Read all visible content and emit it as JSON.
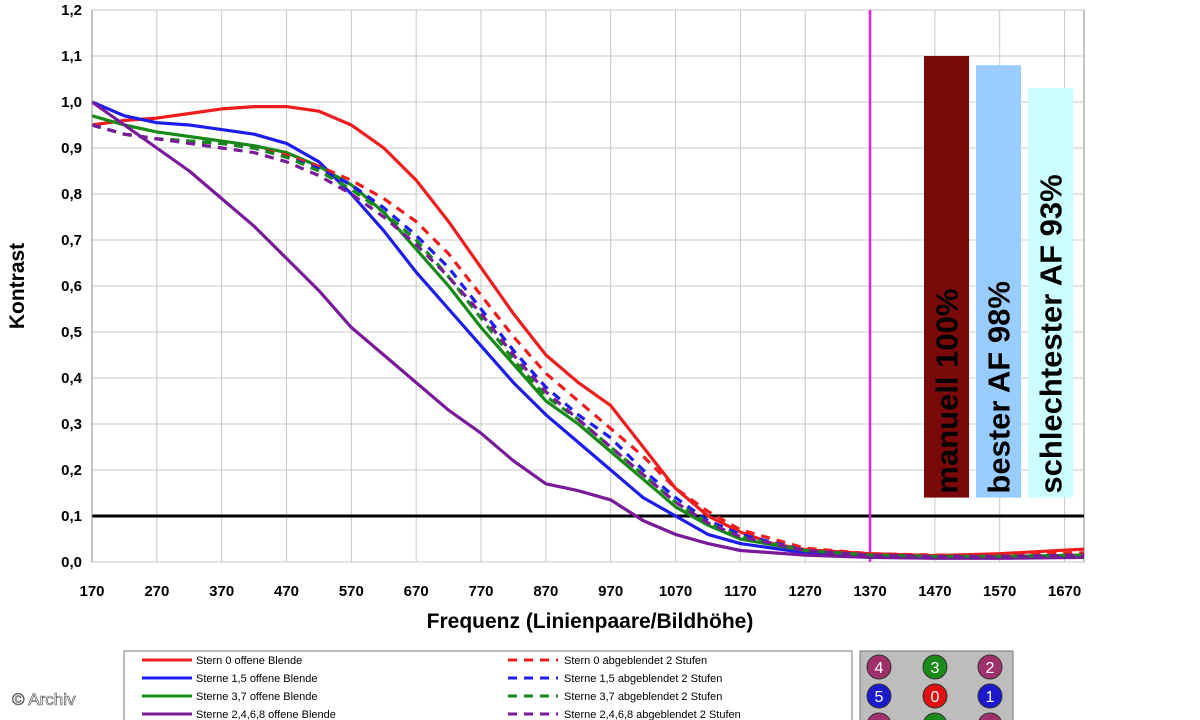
{
  "chart_data": {
    "type": "line",
    "title": "",
    "xlabel": "Frequenz (Linienpaare/Bildhöhe)",
    "ylabel": "Kontrast",
    "xlim": [
      170,
      1700
    ],
    "ylim": [
      0.0,
      1.2
    ],
    "xticks": [
      "170",
      "270",
      "370",
      "470",
      "570",
      "670",
      "770",
      "870",
      "970",
      "1070",
      "1170",
      "1270",
      "1370",
      "1470",
      "1570",
      "1670"
    ],
    "yticks": [
      "0,0",
      "0,1",
      "0,2",
      "0,3",
      "0,4",
      "0,5",
      "0,6",
      "0,7",
      "0,8",
      "0,9",
      "1,0",
      "1,1",
      "1,2"
    ],
    "grid": true,
    "reference_line": {
      "y": 0.1,
      "color": "#000000"
    },
    "marker_line": {
      "x": 1370,
      "color": "#e020e0"
    },
    "series": [
      {
        "name": "Stern 0 offene Blende",
        "color": "#ee1c1c",
        "dash": false,
        "points": [
          [
            170,
            0.95
          ],
          [
            220,
            0.96
          ],
          [
            270,
            0.965
          ],
          [
            320,
            0.975
          ],
          [
            370,
            0.985
          ],
          [
            420,
            0.99
          ],
          [
            470,
            0.99
          ],
          [
            520,
            0.98
          ],
          [
            570,
            0.95
          ],
          [
            620,
            0.9
          ],
          [
            670,
            0.83
          ],
          [
            720,
            0.74
          ],
          [
            770,
            0.64
          ],
          [
            820,
            0.54
          ],
          [
            870,
            0.45
          ],
          [
            920,
            0.39
          ],
          [
            970,
            0.34
          ],
          [
            1020,
            0.25
          ],
          [
            1070,
            0.16
          ],
          [
            1120,
            0.1
          ],
          [
            1170,
            0.065
          ],
          [
            1220,
            0.04
          ],
          [
            1270,
            0.027
          ],
          [
            1370,
            0.018
          ],
          [
            1470,
            0.014
          ],
          [
            1570,
            0.018
          ],
          [
            1700,
            0.028
          ]
        ]
      },
      {
        "name": "Sterne 1,5 offene Blende",
        "color": "#1c1cee",
        "dash": false,
        "points": [
          [
            170,
            1.0
          ],
          [
            220,
            0.97
          ],
          [
            270,
            0.955
          ],
          [
            320,
            0.95
          ],
          [
            370,
            0.94
          ],
          [
            420,
            0.93
          ],
          [
            470,
            0.91
          ],
          [
            520,
            0.87
          ],
          [
            570,
            0.8
          ],
          [
            620,
            0.72
          ],
          [
            670,
            0.63
          ],
          [
            720,
            0.55
          ],
          [
            770,
            0.47
          ],
          [
            820,
            0.39
          ],
          [
            870,
            0.32
          ],
          [
            920,
            0.26
          ],
          [
            970,
            0.2
          ],
          [
            1020,
            0.14
          ],
          [
            1070,
            0.1
          ],
          [
            1120,
            0.06
          ],
          [
            1170,
            0.04
          ],
          [
            1270,
            0.02
          ],
          [
            1370,
            0.013
          ],
          [
            1470,
            0.01
          ],
          [
            1570,
            0.01
          ],
          [
            1700,
            0.012
          ]
        ]
      },
      {
        "name": "Sterne 3,7 offene Blende",
        "color": "#168a16",
        "dash": false,
        "points": [
          [
            170,
            0.97
          ],
          [
            220,
            0.95
          ],
          [
            270,
            0.935
          ],
          [
            320,
            0.925
          ],
          [
            370,
            0.915
          ],
          [
            420,
            0.905
          ],
          [
            470,
            0.89
          ],
          [
            520,
            0.86
          ],
          [
            570,
            0.82
          ],
          [
            620,
            0.76
          ],
          [
            670,
            0.68
          ],
          [
            720,
            0.6
          ],
          [
            770,
            0.51
          ],
          [
            820,
            0.43
          ],
          [
            870,
            0.35
          ],
          [
            920,
            0.3
          ],
          [
            970,
            0.24
          ],
          [
            1020,
            0.18
          ],
          [
            1070,
            0.12
          ],
          [
            1120,
            0.08
          ],
          [
            1170,
            0.05
          ],
          [
            1270,
            0.025
          ],
          [
            1370,
            0.015
          ],
          [
            1470,
            0.012
          ],
          [
            1570,
            0.012
          ],
          [
            1700,
            0.015
          ]
        ]
      },
      {
        "name": "Sterne 2,4,6,8 offene Blende",
        "color": "#7a1a9a",
        "dash": false,
        "points": [
          [
            170,
            1.0
          ],
          [
            220,
            0.95
          ],
          [
            270,
            0.9
          ],
          [
            320,
            0.85
          ],
          [
            370,
            0.79
          ],
          [
            420,
            0.73
          ],
          [
            470,
            0.66
          ],
          [
            520,
            0.59
          ],
          [
            570,
            0.51
          ],
          [
            620,
            0.45
          ],
          [
            670,
            0.39
          ],
          [
            720,
            0.33
          ],
          [
            770,
            0.28
          ],
          [
            820,
            0.22
          ],
          [
            870,
            0.17
          ],
          [
            920,
            0.155
          ],
          [
            970,
            0.135
          ],
          [
            1020,
            0.09
          ],
          [
            1070,
            0.06
          ],
          [
            1120,
            0.04
          ],
          [
            1170,
            0.025
          ],
          [
            1270,
            0.015
          ],
          [
            1370,
            0.01
          ],
          [
            1470,
            0.008
          ],
          [
            1570,
            0.008
          ],
          [
            1700,
            0.01
          ]
        ]
      },
      {
        "name": "Stern 0 abgeblendet 2 Stufen",
        "color": "#ee1c1c",
        "dash": true,
        "points": [
          [
            170,
            0.95
          ],
          [
            220,
            0.93
          ],
          [
            270,
            0.92
          ],
          [
            320,
            0.915
          ],
          [
            370,
            0.91
          ],
          [
            420,
            0.9
          ],
          [
            470,
            0.885
          ],
          [
            520,
            0.86
          ],
          [
            570,
            0.83
          ],
          [
            620,
            0.79
          ],
          [
            670,
            0.74
          ],
          [
            720,
            0.67
          ],
          [
            770,
            0.58
          ],
          [
            820,
            0.49
          ],
          [
            870,
            0.41
          ],
          [
            920,
            0.35
          ],
          [
            970,
            0.29
          ],
          [
            1020,
            0.23
          ],
          [
            1070,
            0.16
          ],
          [
            1120,
            0.11
          ],
          [
            1170,
            0.07
          ],
          [
            1270,
            0.03
          ],
          [
            1370,
            0.018
          ],
          [
            1470,
            0.015
          ],
          [
            1570,
            0.015
          ],
          [
            1700,
            0.02
          ]
        ]
      },
      {
        "name": "Sterne 1,5 abgeblendet 2 Stufen",
        "color": "#1c1cee",
        "dash": true,
        "points": [
          [
            170,
            0.95
          ],
          [
            220,
            0.93
          ],
          [
            270,
            0.92
          ],
          [
            320,
            0.915
          ],
          [
            370,
            0.91
          ],
          [
            420,
            0.9
          ],
          [
            470,
            0.88
          ],
          [
            520,
            0.855
          ],
          [
            570,
            0.82
          ],
          [
            620,
            0.77
          ],
          [
            670,
            0.71
          ],
          [
            720,
            0.64
          ],
          [
            770,
            0.55
          ],
          [
            820,
            0.46
          ],
          [
            870,
            0.38
          ],
          [
            920,
            0.32
          ],
          [
            970,
            0.27
          ],
          [
            1020,
            0.2
          ],
          [
            1070,
            0.14
          ],
          [
            1120,
            0.09
          ],
          [
            1170,
            0.06
          ],
          [
            1270,
            0.025
          ],
          [
            1370,
            0.015
          ],
          [
            1470,
            0.012
          ],
          [
            1570,
            0.012
          ],
          [
            1700,
            0.015
          ]
        ]
      },
      {
        "name": "Sterne 3,7 abgeblendet 2 Stufen",
        "color": "#168a16",
        "dash": true,
        "points": [
          [
            170,
            0.95
          ],
          [
            220,
            0.93
          ],
          [
            270,
            0.92
          ],
          [
            320,
            0.915
          ],
          [
            370,
            0.91
          ],
          [
            420,
            0.9
          ],
          [
            470,
            0.88
          ],
          [
            520,
            0.85
          ],
          [
            570,
            0.81
          ],
          [
            620,
            0.76
          ],
          [
            670,
            0.7
          ],
          [
            720,
            0.62
          ],
          [
            770,
            0.53
          ],
          [
            820,
            0.44
          ],
          [
            870,
            0.36
          ],
          [
            920,
            0.31
          ],
          [
            970,
            0.25
          ],
          [
            1020,
            0.19
          ],
          [
            1070,
            0.13
          ],
          [
            1120,
            0.085
          ],
          [
            1170,
            0.055
          ],
          [
            1270,
            0.025
          ],
          [
            1370,
            0.015
          ],
          [
            1470,
            0.012
          ],
          [
            1570,
            0.012
          ],
          [
            1700,
            0.015
          ]
        ]
      },
      {
        "name": "Sterne 2,4,6,8 abgeblendet 2 Stufen",
        "color": "#7a1a9a",
        "dash": true,
        "points": [
          [
            170,
            0.95
          ],
          [
            220,
            0.93
          ],
          [
            270,
            0.92
          ],
          [
            320,
            0.91
          ],
          [
            370,
            0.9
          ],
          [
            420,
            0.89
          ],
          [
            470,
            0.87
          ],
          [
            520,
            0.84
          ],
          [
            570,
            0.8
          ],
          [
            620,
            0.75
          ],
          [
            670,
            0.69
          ],
          [
            720,
            0.62
          ],
          [
            770,
            0.54
          ],
          [
            820,
            0.45
          ],
          [
            870,
            0.37
          ],
          [
            920,
            0.31
          ],
          [
            970,
            0.25
          ],
          [
            1020,
            0.19
          ],
          [
            1070,
            0.13
          ],
          [
            1120,
            0.085
          ],
          [
            1170,
            0.055
          ],
          [
            1270,
            0.025
          ],
          [
            1370,
            0.015
          ],
          [
            1470,
            0.012
          ],
          [
            1570,
            0.012
          ],
          [
            1700,
            0.015
          ]
        ]
      }
    ],
    "bars": [
      {
        "label": "manuell 100%",
        "value": 1.1,
        "color": "#7a0a0a"
      },
      {
        "label": "bester AF 98%",
        "value": 1.08,
        "color": "#99ccff"
      },
      {
        "label": "schlechtester AF 93%",
        "value": 1.03,
        "color": "#ccffff"
      }
    ],
    "bar_baseline": 0.14
  },
  "star_grid": {
    "cells": [
      {
        "label": "4",
        "color": "#a0306a"
      },
      {
        "label": "3",
        "color": "#1a8a1a"
      },
      {
        "label": "2",
        "color": "#a0306a"
      },
      {
        "label": "5",
        "color": "#1a1acc"
      },
      {
        "label": "0",
        "color": "#e01010"
      },
      {
        "label": "1",
        "color": "#1a1acc"
      },
      {
        "label": "",
        "color": "#a0306a"
      },
      {
        "label": "",
        "color": "#1a8a1a"
      },
      {
        "label": "",
        "color": "#a0306a"
      }
    ]
  },
  "credit": "© Archiv"
}
